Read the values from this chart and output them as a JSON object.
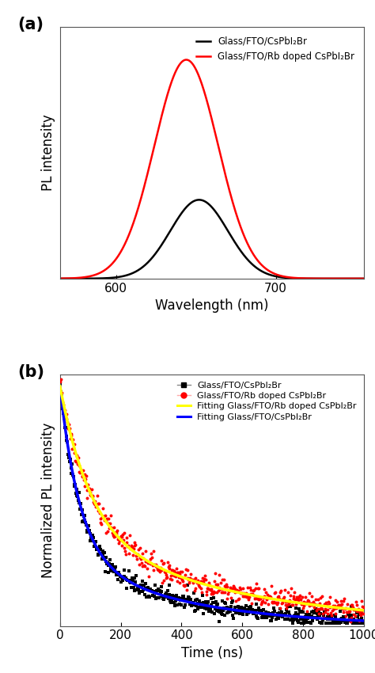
{
  "panel_a": {
    "title_label": "(a)",
    "xlabel": "Wavelength (nm)",
    "ylabel": "PL intensity",
    "xlim": [
      565,
      755
    ],
    "ylim": [
      0,
      1.15
    ],
    "black_peak": 652,
    "black_sigma": 18,
    "black_amp": 0.36,
    "red_peak": 644,
    "red_sigma": 20,
    "red_amp": 1.0,
    "legend": [
      "Glass/FTO/CsPbI₂Br",
      "Glass/FTO/Rb doped CsPbI₂Br"
    ],
    "legend_colors": [
      "#000000",
      "#ff0000"
    ],
    "xticks": [
      600,
      700
    ],
    "bg_color": "#ffffff"
  },
  "panel_b": {
    "title_label": "(b)",
    "xlabel": "Time (ns)",
    "ylabel": "Normalized PL intensity",
    "xlim": [
      0,
      1000
    ],
    "ylim": [
      0.0,
      1.05
    ],
    "xticks": [
      0,
      200,
      400,
      600,
      800,
      1000
    ],
    "legend": [
      "Glass/FTO/CsPbI₂Br",
      "Glass/FTO/Rb doped CsPbI₂Br",
      "Fitting Glass/FTO/Rb doped CsPbI₂Br",
      "Fitting Glass/FTO/CsPbI₂Br"
    ],
    "black_scatter_color": "#000000",
    "red_scatter_color": "#ff0000",
    "yellow_fit_color": "#ffff00",
    "blue_fit_color": "#0000ff",
    "black_legend_color": "#888888",
    "red_legend_color": "#ffaaaa",
    "black_A1": 0.7,
    "black_tau1": 65,
    "black_A2": 0.3,
    "black_tau2": 380,
    "red_A1": 0.6,
    "red_tau1": 100,
    "red_A2": 0.4,
    "red_tau2": 550,
    "bg_color": "#ffffff"
  },
  "fig_bg": "#ffffff"
}
